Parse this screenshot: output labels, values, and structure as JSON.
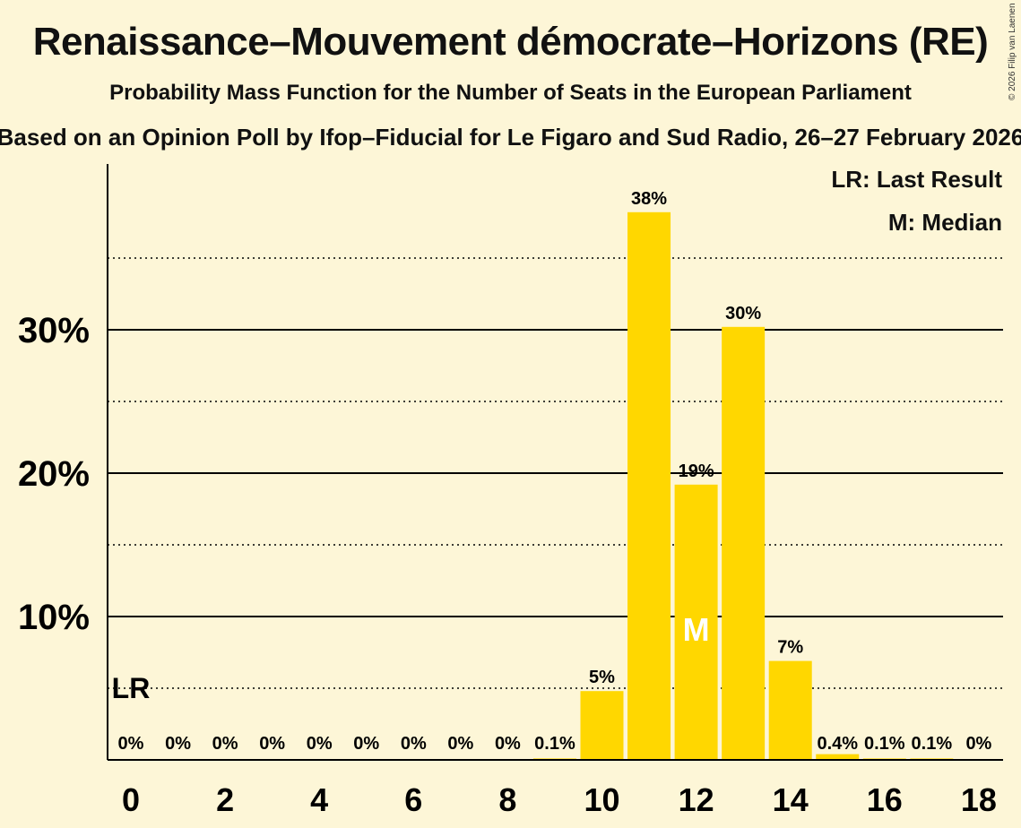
{
  "copyright": "© 2026 Filip van Laenen",
  "chart_data": {
    "type": "bar",
    "title": "Renaissance–Mouvement démocrate–Horizons (RE)",
    "subtitle": "Probability Mass Function for the Number of Seats in the European Parliament",
    "source": "Based on an Opinion Poll by Ifop–Fiducial for Le Figaro and Sud Radio, 26–27 February 2026",
    "categories": [
      0,
      1,
      2,
      3,
      4,
      5,
      6,
      7,
      8,
      9,
      10,
      11,
      12,
      13,
      14,
      15,
      16,
      17,
      18
    ],
    "values": [
      0,
      0,
      0,
      0,
      0,
      0,
      0,
      0,
      0,
      0.1,
      4.8,
      38.2,
      19.2,
      30.2,
      6.9,
      0.4,
      0.1,
      0.1,
      0
    ],
    "value_labels": [
      "0%",
      "0%",
      "0%",
      "0%",
      "0%",
      "0%",
      "0%",
      "0%",
      "0%",
      "0.1%",
      "5%",
      "38%",
      "19%",
      "30%",
      "7%",
      "0.4%",
      "0.1%",
      "0.1%",
      "0%"
    ],
    "x_tick_labels": [
      "0",
      "2",
      "4",
      "6",
      "8",
      "10",
      "12",
      "14",
      "16",
      "18"
    ],
    "y_ticks": [
      10,
      20,
      30
    ],
    "y_tick_labels": [
      "10%",
      "20%",
      "30%"
    ],
    "y_dotted_lines": [
      5,
      15,
      25,
      35
    ],
    "ylim": [
      0,
      41.5
    ],
    "bar_color": "#ffd700",
    "last_result": {
      "seat": 0,
      "label": "LR"
    },
    "median": {
      "seat": 12,
      "label": "M"
    },
    "legend": [
      "LR: Last Result",
      "M: Median"
    ],
    "legend_position": "top-right"
  }
}
